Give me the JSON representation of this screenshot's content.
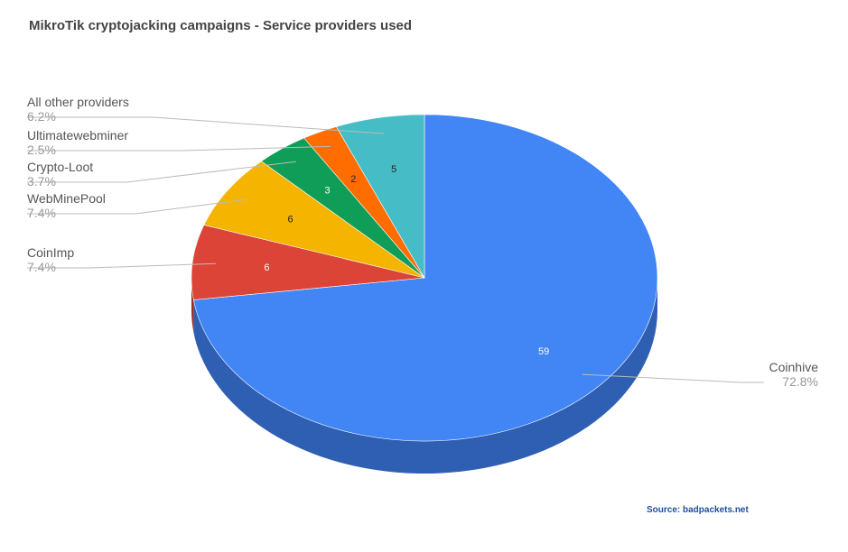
{
  "chart_data": {
    "type": "pie",
    "title": "MikroTik cryptojacking campaigns - Service providers used",
    "source": "Source: badpackets.net",
    "slices": [
      {
        "label": "Coinhive",
        "value": 59,
        "value_label": "59",
        "percent_label": "72.8%",
        "color": "#4285f4",
        "side_color": "#2f5fb3",
        "value_text_color": "#ffffff"
      },
      {
        "label": "CoinImp",
        "value": 6,
        "value_label": "6",
        "percent_label": "7.4%",
        "color": "#db4437",
        "side_color": "#9e2e24",
        "value_text_color": "#ffffff"
      },
      {
        "label": "WebMinePool",
        "value": 6,
        "value_label": "6",
        "percent_label": "7.4%",
        "color": "#f4b400",
        "side_color": "#b38500",
        "value_text_color": "#222222"
      },
      {
        "label": "Crypto-Loot",
        "value": 3,
        "value_label": "3",
        "percent_label": "3.7%",
        "color": "#0f9d58",
        "side_color": "#0a6e3d",
        "value_text_color": "#ffffff"
      },
      {
        "label": "Ultimatewebminer",
        "value": 2,
        "value_label": "2",
        "percent_label": "2.5%",
        "color": "#ff6d00",
        "side_color": "#b34c00",
        "value_text_color": "#222222"
      },
      {
        "label": "All other providers",
        "value": 5,
        "value_label": "5",
        "percent_label": "6.2%",
        "color": "#46bdc6",
        "side_color": "#2f868d",
        "value_text_color": "#222222"
      }
    ]
  }
}
